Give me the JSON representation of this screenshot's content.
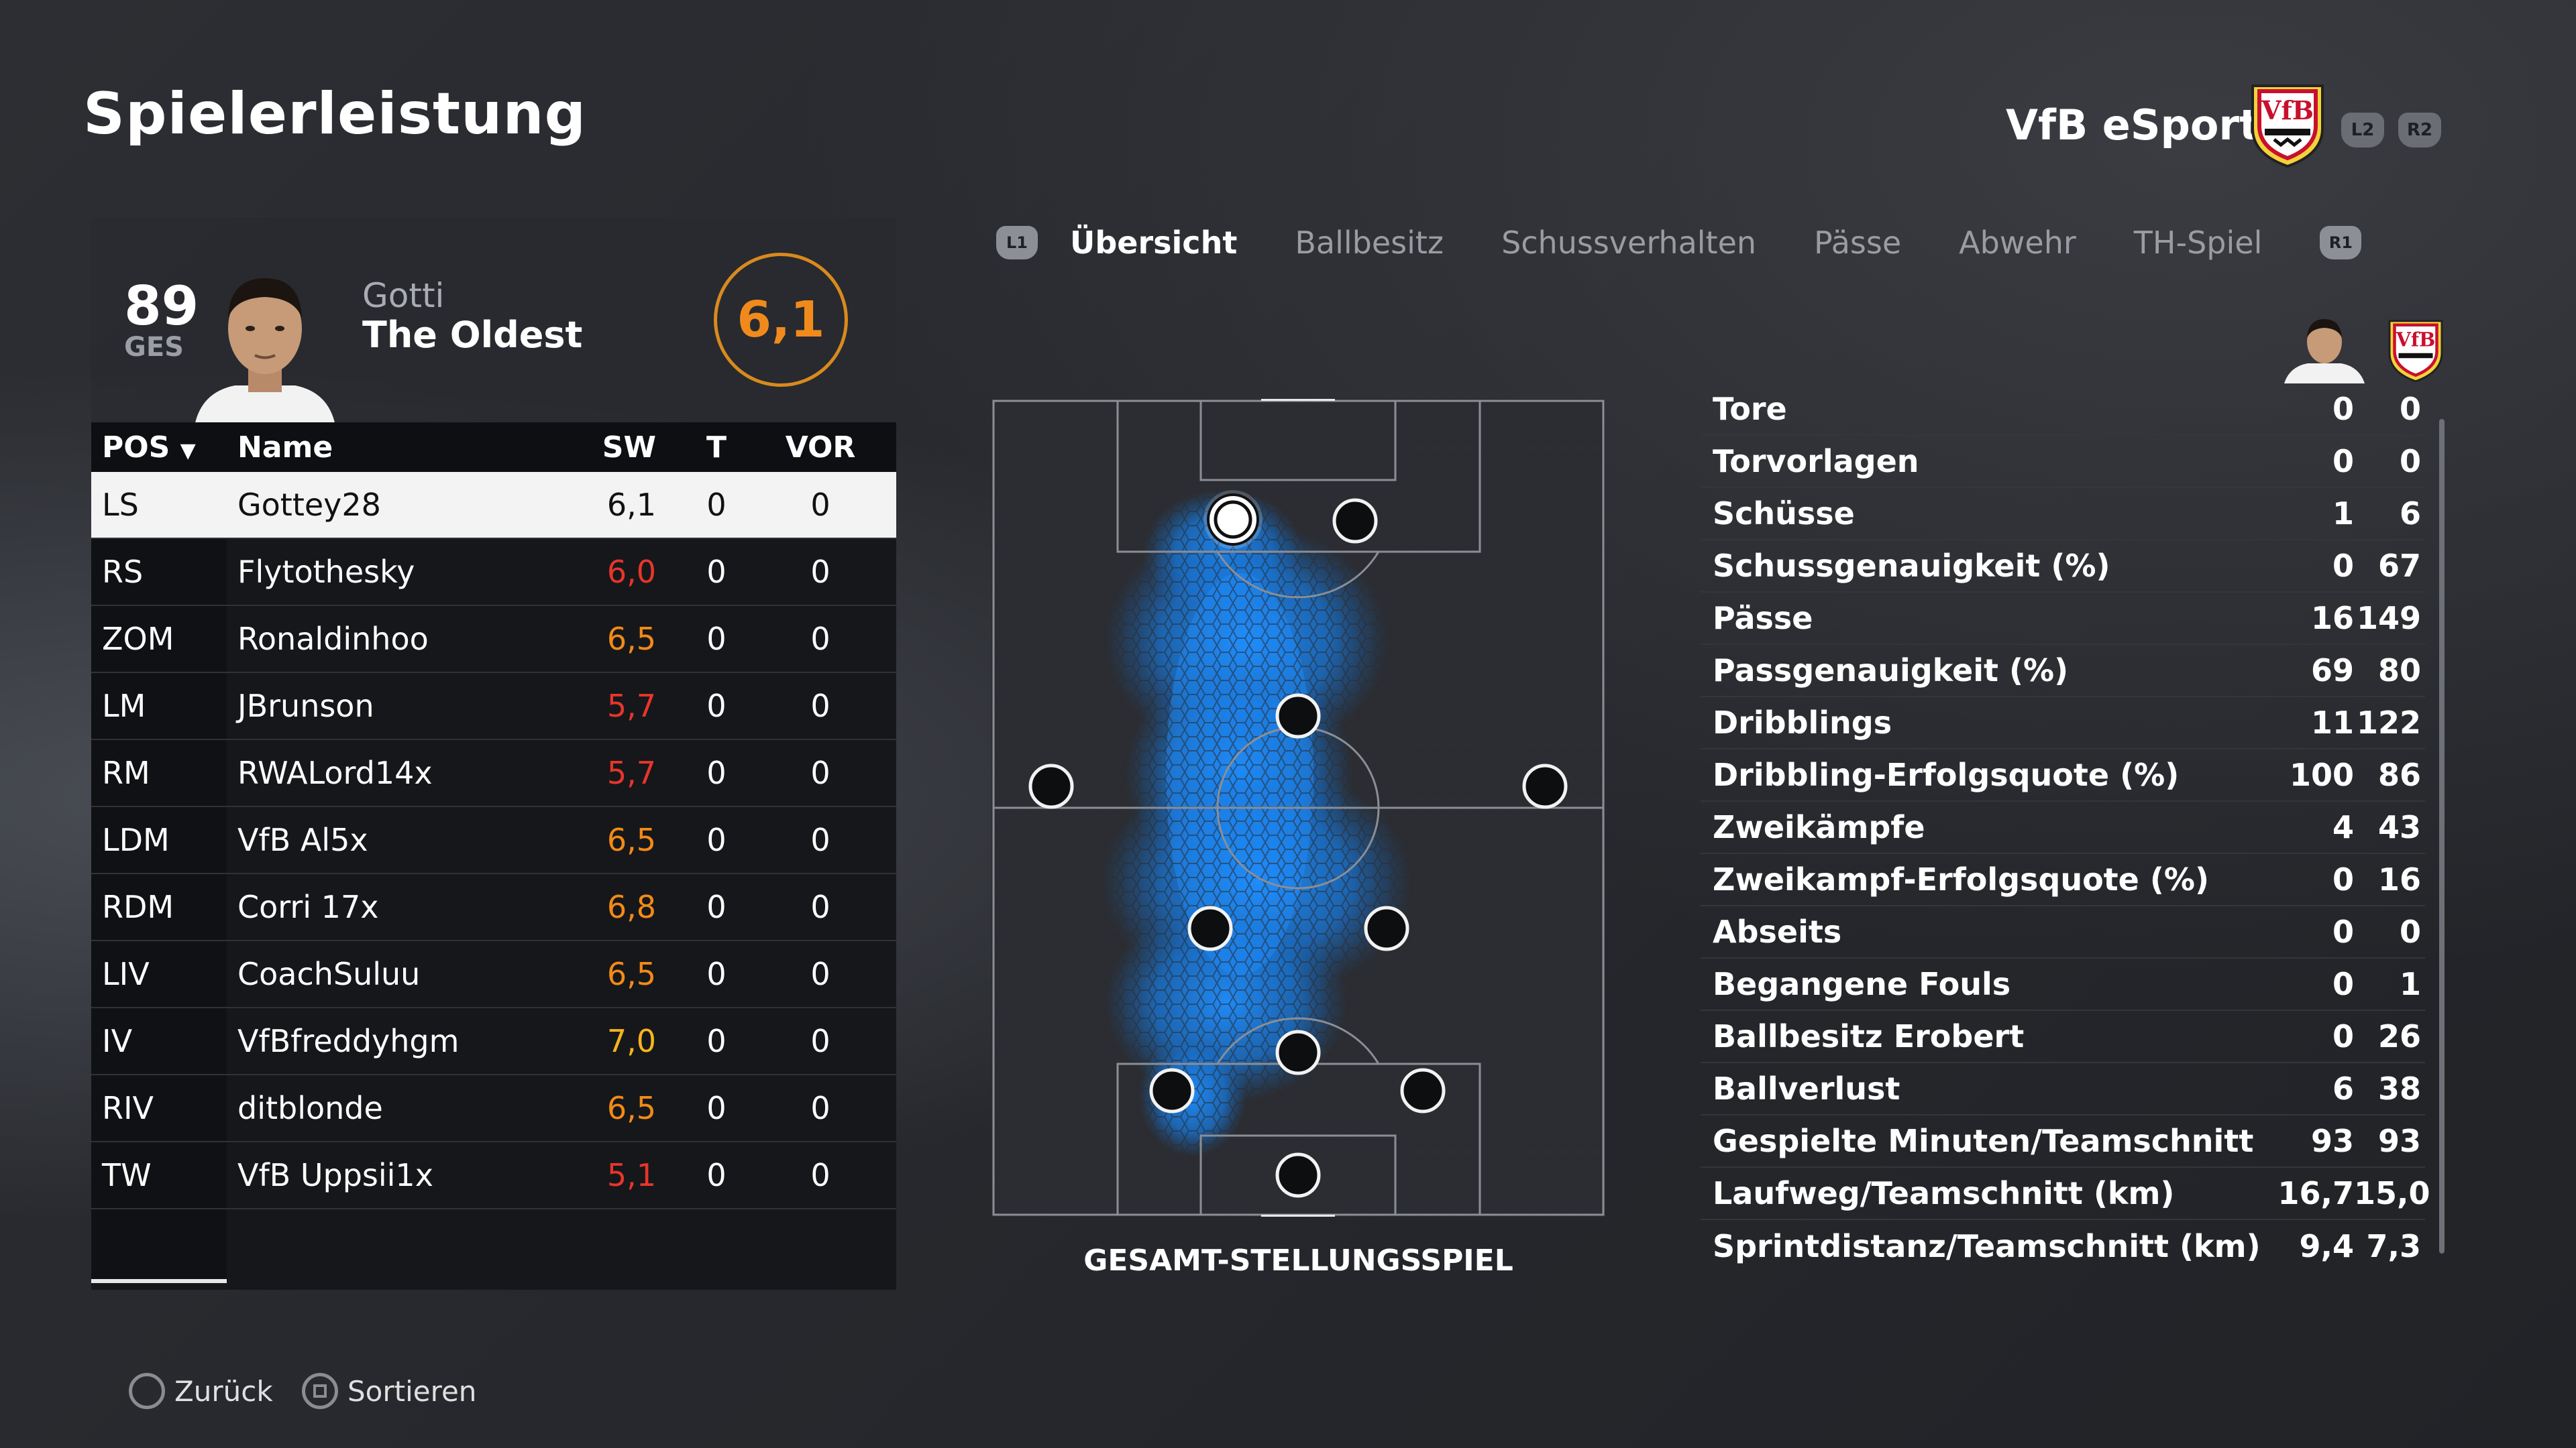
{
  "header": {
    "title": "Spielerleistung",
    "team_name": "VfB eSports",
    "btn_l2": "L2",
    "btn_r2": "R2"
  },
  "player": {
    "overall": "89",
    "overall_label": "GES",
    "first_name": "Gotti",
    "last_name": "The Oldest",
    "match_rating": "6,1"
  },
  "table": {
    "headers": {
      "pos": "POS",
      "name": "Name",
      "sw": "SW",
      "t": "T",
      "vor": "VOR"
    },
    "rows": [
      {
        "pos": "LS",
        "name": "Gottey28",
        "sw": "6,1",
        "t": "0",
        "vor": "0",
        "sw_color": "#111111"
      },
      {
        "pos": "RS",
        "name": "Flytothesky",
        "sw": "6,0",
        "t": "0",
        "vor": "0",
        "sw_color": "#e8352b"
      },
      {
        "pos": "ZOM",
        "name": "Ronaldinhoo",
        "sw": "6,5",
        "t": "0",
        "vor": "0",
        "sw_color": "#f28a17"
      },
      {
        "pos": "LM",
        "name": "JBrunson",
        "sw": "5,7",
        "t": "0",
        "vor": "0",
        "sw_color": "#e8352b"
      },
      {
        "pos": "RM",
        "name": "RWALord14x",
        "sw": "5,7",
        "t": "0",
        "vor": "0",
        "sw_color": "#e8352b"
      },
      {
        "pos": "LDM",
        "name": "VfB Al5x",
        "sw": "6,5",
        "t": "0",
        "vor": "0",
        "sw_color": "#f28a17"
      },
      {
        "pos": "RDM",
        "name": "Corri 17x",
        "sw": "6,8",
        "t": "0",
        "vor": "0",
        "sw_color": "#f28a17"
      },
      {
        "pos": "LIV",
        "name": "CoachSuluu",
        "sw": "6,5",
        "t": "0",
        "vor": "0",
        "sw_color": "#f28a17"
      },
      {
        "pos": "IV",
        "name": "VfBfreddyhgm",
        "sw": "7,0",
        "t": "0",
        "vor": "0",
        "sw_color": "#f5b51c"
      },
      {
        "pos": "RIV",
        "name": "ditblonde",
        "sw": "6,5",
        "t": "0",
        "vor": "0",
        "sw_color": "#f28a17"
      },
      {
        "pos": "TW",
        "name": "VfB Uppsii1x",
        "sw": "5,1",
        "t": "0",
        "vor": "0",
        "sw_color": "#e8352b"
      }
    ]
  },
  "tabs": {
    "l1": "L1",
    "r1": "R1",
    "items": [
      "Übersicht",
      "Ballbesitz",
      "Schussverhalten",
      "Pässe",
      "Abwehr",
      "TH-Spiel"
    ]
  },
  "pitch": {
    "caption": "GESAMT-STELLUNGSSPIEL"
  },
  "stats": [
    {
      "label": "Tore",
      "player": "0",
      "team": "0"
    },
    {
      "label": "Torvorlagen",
      "player": "0",
      "team": "0"
    },
    {
      "label": "Schüsse",
      "player": "1",
      "team": "6"
    },
    {
      "label": "Schussgenauigkeit (%)",
      "player": "0",
      "team": "67"
    },
    {
      "label": "Pässe",
      "player": "16",
      "team": "149"
    },
    {
      "label": "Passgenauigkeit (%)",
      "player": "69",
      "team": "80"
    },
    {
      "label": "Dribblings",
      "player": "11",
      "team": "122"
    },
    {
      "label": "Dribbling-Erfolgsquote (%)",
      "player": "100",
      "team": "86"
    },
    {
      "label": "Zweikämpfe",
      "player": "4",
      "team": "43"
    },
    {
      "label": "Zweikampf-Erfolgsquote (%)",
      "player": "0",
      "team": "16"
    },
    {
      "label": "Abseits",
      "player": "0",
      "team": "0"
    },
    {
      "label": "Begangene Fouls",
      "player": "0",
      "team": "1"
    },
    {
      "label": "Ballbesitz Erobert",
      "player": "0",
      "team": "26"
    },
    {
      "label": "Ballverlust",
      "player": "6",
      "team": "38"
    },
    {
      "label": "Gespielte Minuten/Teamschnitt",
      "player": "93",
      "team": "93"
    },
    {
      "label": "Laufweg/Teamschnitt (km)",
      "player": "16,7",
      "team": "15,0"
    },
    {
      "label": "Sprintdistanz/Teamschnitt (km)",
      "player": "9,4",
      "team": "7,3"
    }
  ],
  "footer": {
    "back": "Zurück",
    "sort": "Sortieren"
  },
  "colors": {
    "accent_orange": "#f08a1c",
    "heatmap_blue": "#1e90ff",
    "rating_red": "#e8352b"
  }
}
